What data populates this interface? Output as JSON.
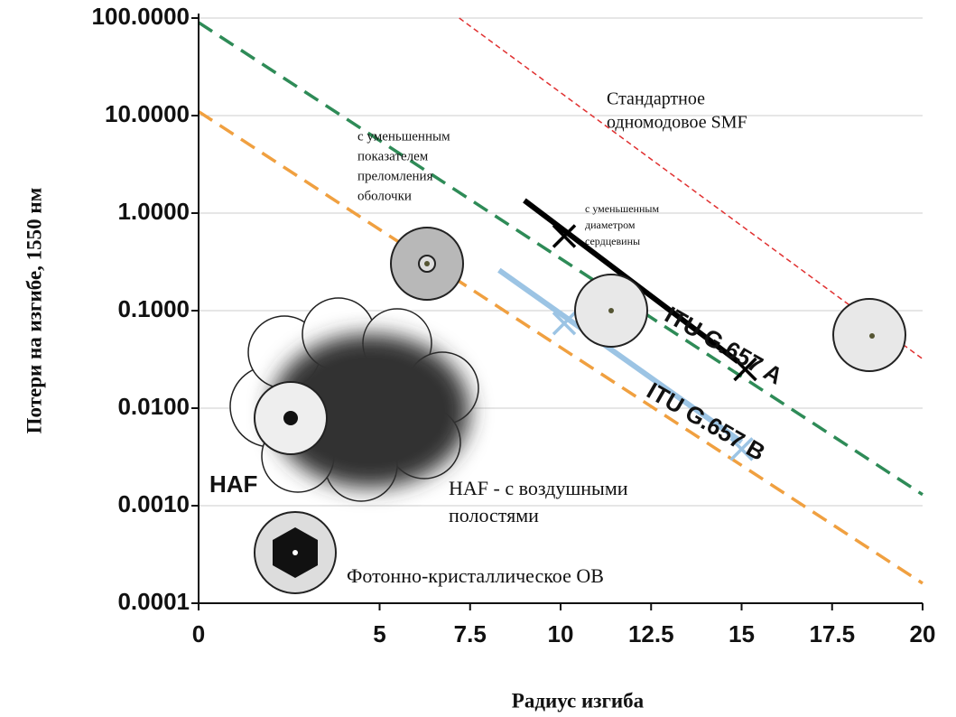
{
  "chart_data": {
    "type": "line",
    "x_label": "Радиус изгиба",
    "y_label": "Потери на изгибе, 1550 нм",
    "log_y": true,
    "grid": true,
    "xlim": [
      0,
      20
    ],
    "ylim": [
      0.0001,
      100
    ],
    "xticks": [
      0,
      5,
      7.5,
      10,
      12.5,
      15,
      17.5,
      20
    ],
    "yticks": [
      {
        "value": 100,
        "label": "100.0000"
      },
      {
        "value": 10,
        "label": "10.0000"
      },
      {
        "value": 1,
        "label": "1.0000"
      },
      {
        "value": 0.1,
        "label": "0.1000"
      },
      {
        "value": 0.01,
        "label": "0.0100"
      },
      {
        "value": 0.001,
        "label": "0.0010"
      },
      {
        "value": 0.0001,
        "label": "0.0001"
      }
    ],
    "series": [
      {
        "color": "#e03030",
        "dash": "small",
        "x": [
          7.2,
          20
        ],
        "values": [
          100,
          0.032
        ]
      },
      {
        "color": "#2e8b57",
        "dash": "large",
        "x": [
          0,
          20
        ],
        "values": [
          90,
          0.0013
        ]
      },
      {
        "color": "#f0a040",
        "dash": "large",
        "x": [
          0,
          20
        ],
        "values": [
          11,
          0.00016
        ]
      },
      {
        "color": "#000000",
        "dash": "none",
        "x": [
          9,
          14.9
        ],
        "values": [
          1.35,
          0.03
        ]
      },
      {
        "color": "#9cc4e4",
        "dash": "none",
        "x": [
          8.3,
          15
        ],
        "values": [
          0.26,
          0.0045
        ]
      }
    ],
    "markers": [
      {
        "color": "#000000",
        "x": [
          10.1,
          15.1
        ],
        "values": [
          0.58,
          0.025
        ]
      },
      {
        "color": "#9cc4e4",
        "x": [
          10.1,
          15
        ],
        "values": [
          0.074,
          0.0038
        ]
      }
    ],
    "annotations": [
      {
        "lines": [
          "Стандартное",
          "одномодовое SMF"
        ],
        "color": "#e03030"
      },
      {
        "lines": [
          "с уменьшенным",
          "показателем",
          "преломления",
          "оболочки"
        ],
        "color": "#111111"
      },
      {
        "lines": [
          "с уменьшенным",
          "диаметром",
          "сердцевины"
        ],
        "color": "#111111"
      },
      {
        "lines": [
          "ITU G.657 A"
        ],
        "color": "#111111"
      },
      {
        "lines": [
          "ITU G.657 B"
        ],
        "color": "#111111"
      },
      {
        "lines": [
          "HAF"
        ],
        "color": "#111111"
      },
      {
        "lines": [
          "HAF - с воздушными",
          "полостями"
        ],
        "color": "#111111"
      },
      {
        "lines": [
          "Фотонно-кристаллическое ОВ"
        ],
        "color": "#111111"
      }
    ]
  }
}
